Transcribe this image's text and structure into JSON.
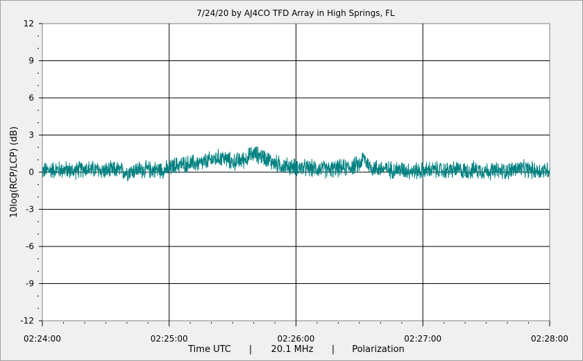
{
  "chart_data": {
    "type": "line",
    "title": "7/24/20  by  AJ4CO TFD Array  in  High Springs, FL",
    "ylabel": "10log(RCP/LCP) (dB)",
    "xlabel_parts": [
      "Time UTC",
      "|",
      "20.1 MHz",
      "|",
      "Polarization"
    ],
    "ylim": [
      -12,
      12
    ],
    "yticks": [
      12,
      9,
      6,
      3,
      0,
      -3,
      -6,
      -9,
      -12
    ],
    "xticks": [
      "02:24:00",
      "02:25:00",
      "02:26:00",
      "02:27:00",
      "02:28:00"
    ],
    "x_range_seconds": [
      0,
      240
    ],
    "grid": true,
    "colors": {
      "series": "#008080",
      "grid": "#000000",
      "background": "#ffffff"
    },
    "series": [
      {
        "x": [
          0,
          5,
          10,
          15,
          20,
          25,
          30,
          35,
          40,
          45,
          50,
          55,
          60,
          62,
          65,
          70,
          75,
          80,
          85,
          90,
          95,
          100,
          105,
          110,
          115,
          120,
          125,
          130,
          135,
          140,
          145,
          150,
          152,
          155,
          160,
          165,
          170,
          175,
          180,
          185,
          190,
          195,
          200,
          205,
          210,
          215,
          220,
          225,
          230,
          235,
          240
        ],
        "y": [
          0.1,
          0.2,
          0.2,
          0.1,
          0.3,
          0.2,
          0.1,
          0.2,
          0.0,
          0.2,
          0.2,
          0.2,
          0.2,
          0.5,
          0.6,
          0.7,
          0.7,
          1.0,
          1.2,
          0.8,
          1.0,
          1.5,
          1.2,
          0.7,
          0.5,
          0.4,
          0.3,
          0.3,
          0.2,
          0.3,
          0.4,
          0.6,
          1.2,
          0.4,
          0.3,
          0.2,
          0.2,
          0.1,
          0.1,
          0.2,
          0.1,
          0.2,
          0.1,
          0.2,
          0.1,
          0.1,
          0.1,
          0.3,
          0.2,
          0.1,
          0.2
        ],
        "noise_amplitude_db": 0.6
      }
    ]
  }
}
